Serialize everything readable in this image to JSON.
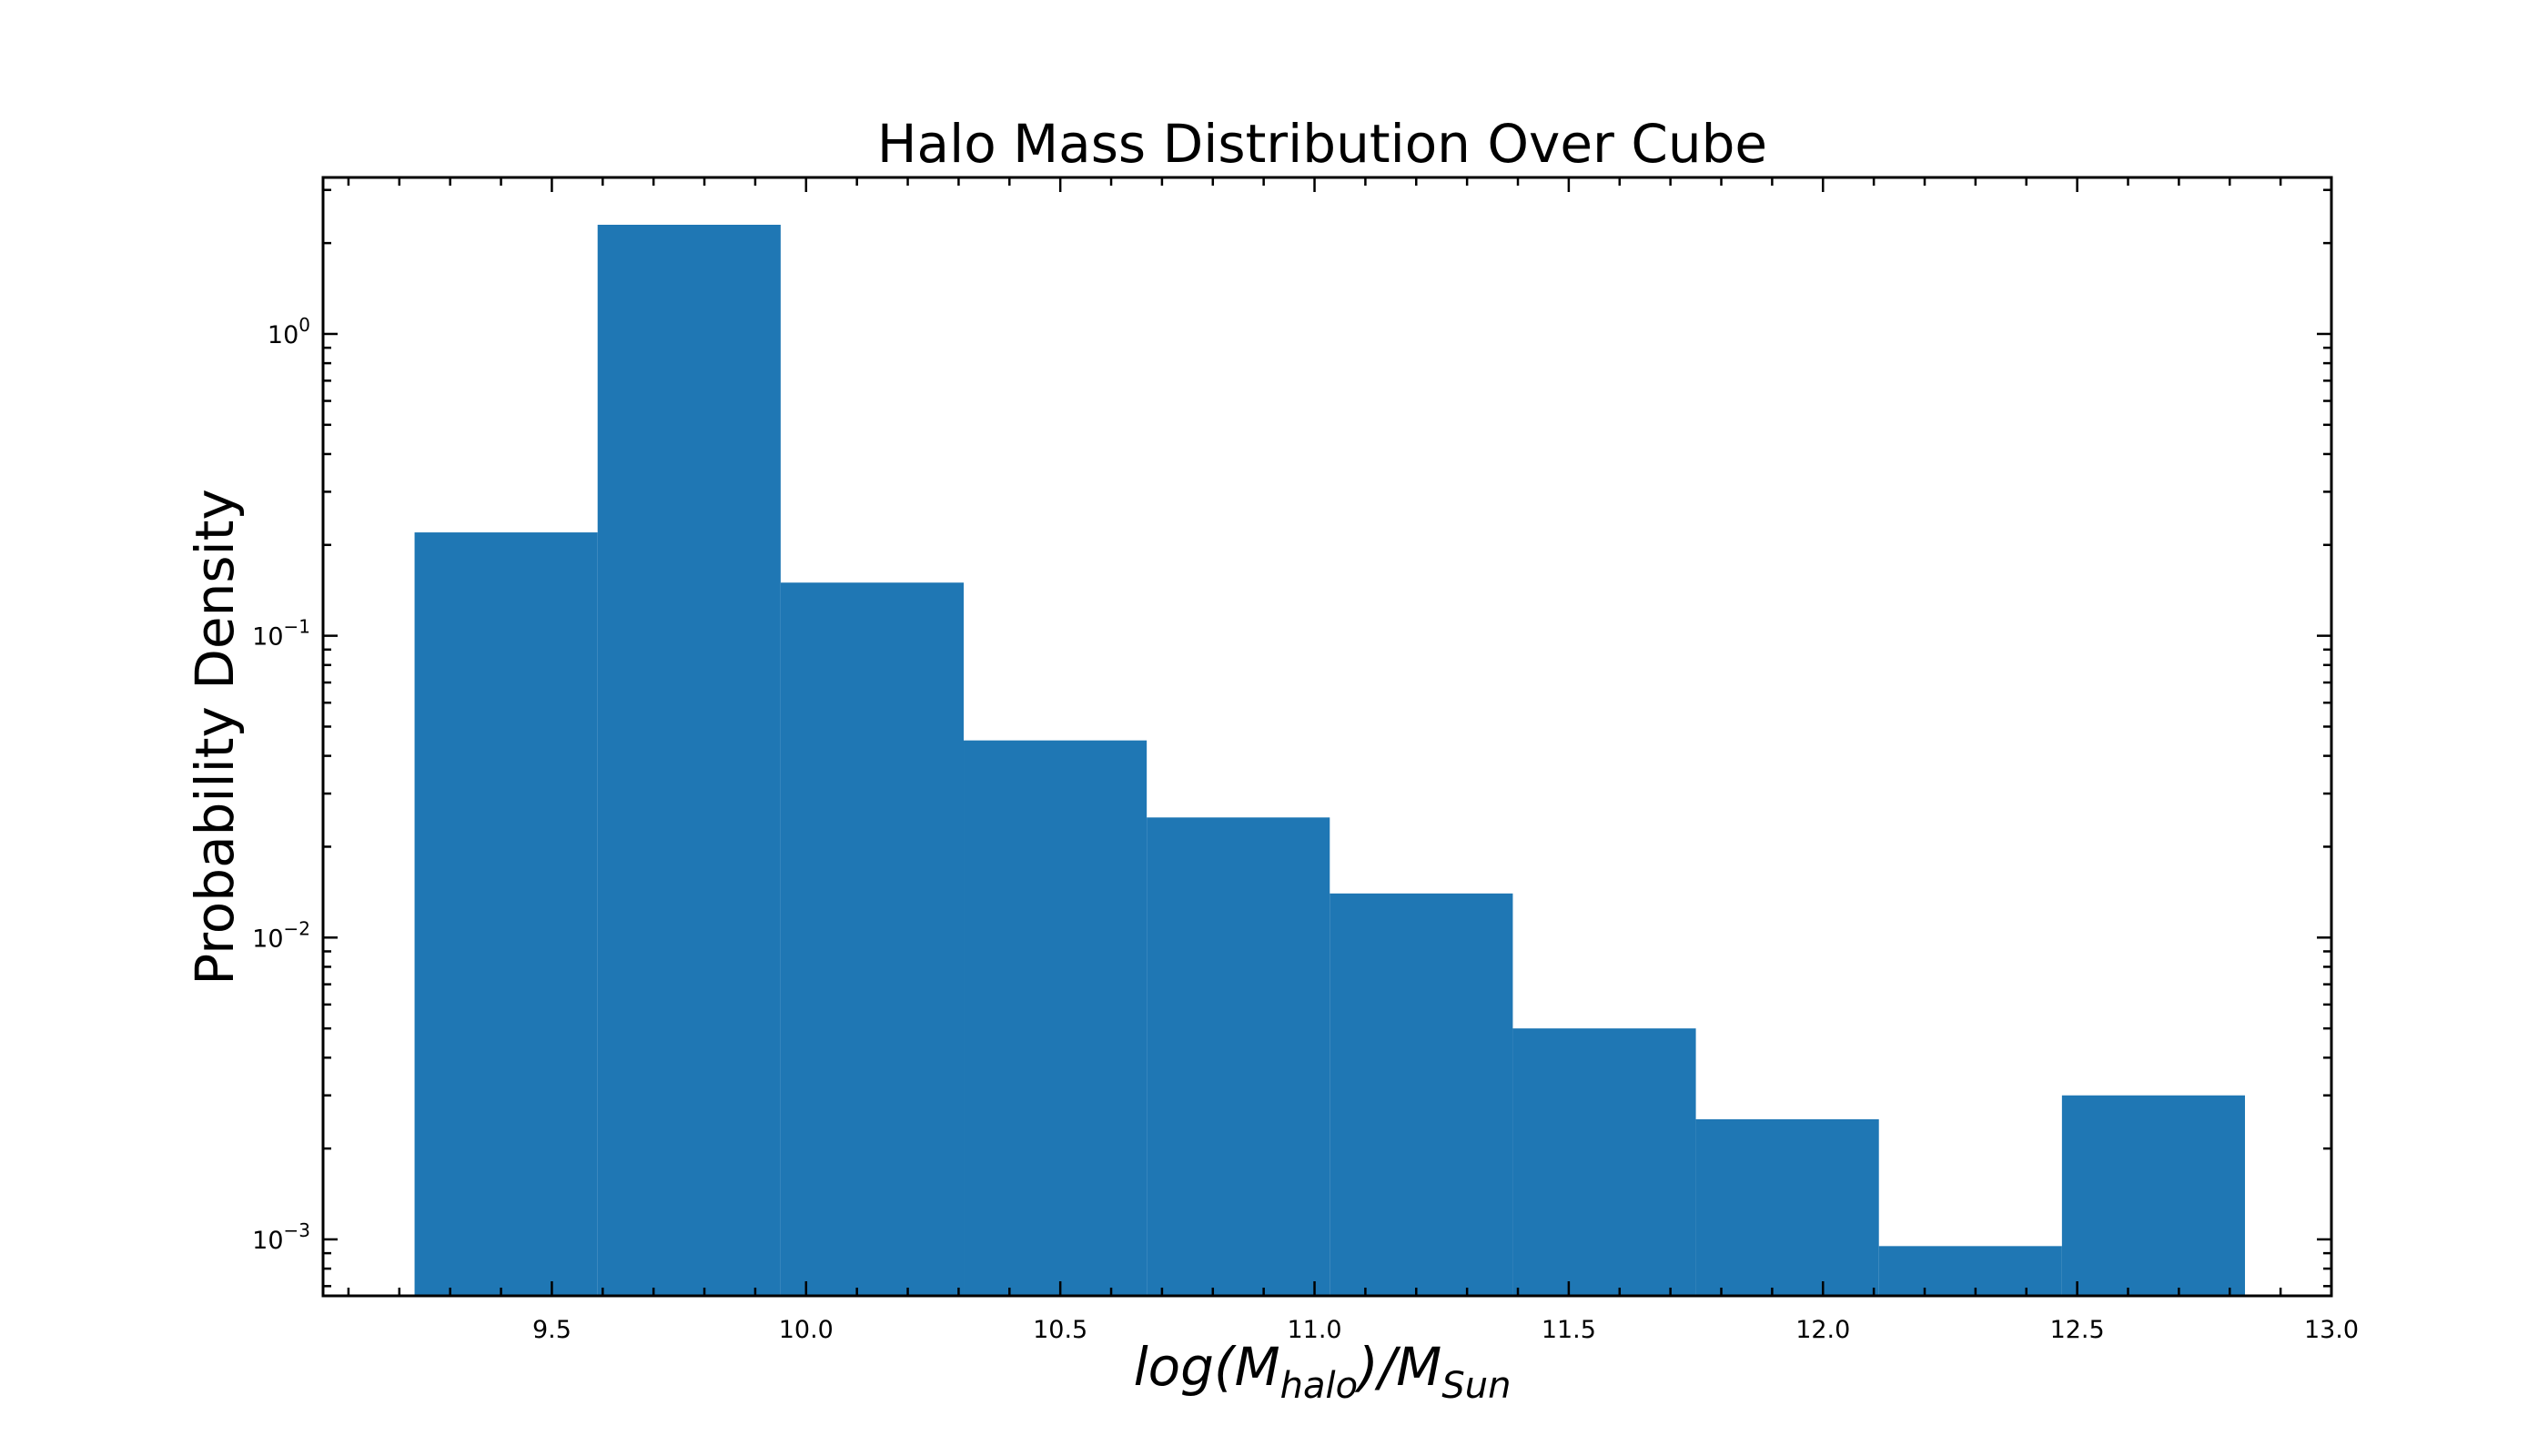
{
  "chart_data": {
    "type": "bar",
    "title": "Halo Mass Distribution Over Cube",
    "xlabel": {
      "text": "log(M",
      "subscript_1": "halo",
      "middle": ")/M",
      "subscript_2": "Sun"
    },
    "ylabel": "Probability Density",
    "y_scale": "log",
    "xlim": [
      9.05,
      13.0
    ],
    "ylim": [
      0.00065,
      3.3
    ],
    "x_ticks": [
      "9.5",
      "10.0",
      "10.5",
      "11.0",
      "11.5",
      "12.0",
      "12.5",
      "13.0"
    ],
    "y_ticks": [
      {
        "base": "10",
        "exp": "0",
        "value": 1
      },
      {
        "base": "10",
        "exp": "−1",
        "value": 0.1
      },
      {
        "base": "10",
        "exp": "−2",
        "value": 0.01
      },
      {
        "base": "10",
        "exp": "−3",
        "value": 0.001
      }
    ],
    "bins": [
      {
        "x0": 9.23,
        "x1": 9.59,
        "value": 0.22
      },
      {
        "x0": 9.59,
        "x1": 9.95,
        "value": 2.3
      },
      {
        "x0": 9.95,
        "x1": 10.31,
        "value": 0.15
      },
      {
        "x0": 10.31,
        "x1": 10.67,
        "value": 0.045
      },
      {
        "x0": 10.67,
        "x1": 11.03,
        "value": 0.025
      },
      {
        "x0": 11.03,
        "x1": 11.39,
        "value": 0.014
      },
      {
        "x0": 11.39,
        "x1": 11.75,
        "value": 0.005
      },
      {
        "x0": 11.75,
        "x1": 12.11,
        "value": 0.0025
      },
      {
        "x0": 12.11,
        "x1": 12.47,
        "value": 0.00095
      },
      {
        "x0": 12.47,
        "x1": 12.83,
        "value": 0.003
      }
    ],
    "bar_color": "#1f77b4",
    "grid": false,
    "legend": "none"
  }
}
